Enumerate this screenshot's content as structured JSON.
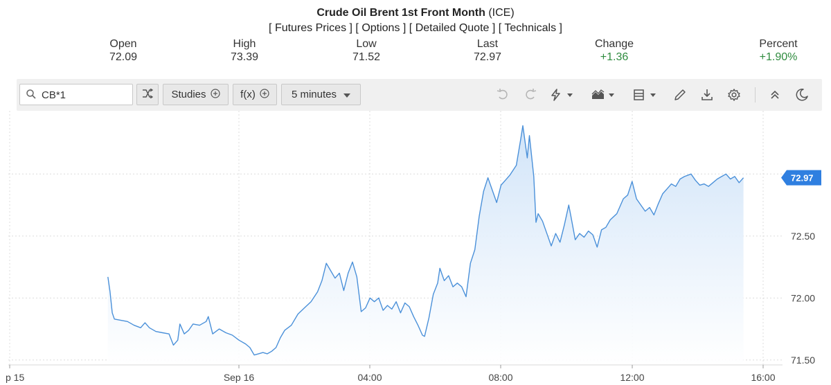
{
  "header": {
    "title_main": "Crude Oil Brent 1st Front Month",
    "title_exchange": "(ICE)",
    "links": [
      "Futures Prices",
      "Options",
      "Detailed Quote",
      "Technicals"
    ]
  },
  "stats": [
    {
      "label": "Open",
      "value": "72.09"
    },
    {
      "label": "High",
      "value": "73.39"
    },
    {
      "label": "Low",
      "value": "71.52"
    },
    {
      "label": "Last",
      "value": "72.97"
    },
    {
      "label": "Change",
      "value": "+1.36"
    },
    {
      "label": "Percent",
      "value": "+1.90%"
    }
  ],
  "toolbar": {
    "symbol": "CB*1",
    "studies_label": "Studies",
    "fx_label": "f(x)",
    "interval_label": "5 minutes",
    "icons": [
      "undo-icon",
      "redo-icon",
      "lightning-icon",
      "area-chart-icon",
      "layout-icon",
      "pencil-icon",
      "download-icon",
      "settings-icon",
      "collapse-icon",
      "dark-mode-icon"
    ]
  },
  "colors": {
    "line": "#4a90d9",
    "area_top": "#cfe3f8",
    "positive": "#2e8b3e",
    "last_tag": "#2f7fe0"
  },
  "chart_data": {
    "type": "area",
    "title": "Crude Oil Brent 1st Front Month (ICE)",
    "xlabel": "",
    "ylabel": "",
    "ylim": [
      71.46,
      73.51
    ],
    "y_ticks": [
      "72.50",
      "72.00",
      "71.50"
    ],
    "x_ticks": [
      "p 15",
      "Sep 16",
      "04:00",
      "08:00",
      "12:00",
      "16:00"
    ],
    "last_value_label": "72.97",
    "grid": true,
    "series": [
      {
        "points": [
          [
            "Sep 15 20:00",
            72.17
          ],
          [
            "Sep 15 20:04",
            72.05
          ],
          [
            "Sep 15 20:08",
            71.88
          ],
          [
            "Sep 15 20:12",
            71.83
          ],
          [
            "Sep 15 20:24",
            71.82
          ],
          [
            "Sep 15 20:36",
            71.81
          ],
          [
            "Sep 15 20:48",
            71.78
          ],
          [
            "Sep 15 21:00",
            71.76
          ],
          [
            "Sep 15 21:08",
            71.8
          ],
          [
            "Sep 15 21:16",
            71.76
          ],
          [
            "Sep 15 21:28",
            71.73
          ],
          [
            "Sep 15 21:40",
            71.72
          ],
          [
            "Sep 15 21:52",
            71.71
          ],
          [
            "Sep 15 22:00",
            71.62
          ],
          [
            "Sep 15 22:08",
            71.66
          ],
          [
            "Sep 15 22:12",
            71.79
          ],
          [
            "Sep 15 22:20",
            71.71
          ],
          [
            "Sep 15 22:28",
            71.74
          ],
          [
            "Sep 15 22:36",
            71.79
          ],
          [
            "Sep 15 22:48",
            71.78
          ],
          [
            "Sep 15 23:00",
            71.81
          ],
          [
            "Sep 15 23:04",
            71.85
          ],
          [
            "Sep 15 23:12",
            71.71
          ],
          [
            "Sep 15 23:24",
            71.75
          ],
          [
            "Sep 15 23:36",
            71.72
          ],
          [
            "Sep 15 23:48",
            71.7
          ],
          [
            "Sep 16 00:00",
            71.66
          ],
          [
            "Sep 16 00:12",
            71.63
          ],
          [
            "Sep 16 00:20",
            71.6
          ],
          [
            "Sep 16 00:28",
            71.54
          ],
          [
            "Sep 16 00:36",
            71.55
          ],
          [
            "Sep 16 00:44",
            71.56
          ],
          [
            "Sep 16 00:52",
            71.55
          ],
          [
            "Sep 16 01:00",
            71.57
          ],
          [
            "Sep 16 01:08",
            71.6
          ],
          [
            "Sep 16 01:16",
            71.68
          ],
          [
            "Sep 16 01:24",
            71.74
          ],
          [
            "Sep 16 01:36",
            71.78
          ],
          [
            "Sep 16 01:48",
            71.87
          ],
          [
            "Sep 16 02:00",
            71.92
          ],
          [
            "Sep 16 02:12",
            71.97
          ],
          [
            "Sep 16 02:24",
            72.05
          ],
          [
            "Sep 16 02:32",
            72.14
          ],
          [
            "Sep 16 02:40",
            72.28
          ],
          [
            "Sep 16 02:48",
            72.22
          ],
          [
            "Sep 16 02:56",
            72.16
          ],
          [
            "Sep 16 03:04",
            72.2
          ],
          [
            "Sep 16 03:12",
            72.06
          ],
          [
            "Sep 16 03:20",
            72.2
          ],
          [
            "Sep 16 03:28",
            72.29
          ],
          [
            "Sep 16 03:36",
            72.17
          ],
          [
            "Sep 16 03:44",
            71.89
          ],
          [
            "Sep 16 03:52",
            71.92
          ],
          [
            "Sep 16 04:00",
            72.0
          ],
          [
            "Sep 16 04:08",
            71.97
          ],
          [
            "Sep 16 04:16",
            72.0
          ],
          [
            "Sep 16 04:24",
            71.9
          ],
          [
            "Sep 16 04:32",
            71.94
          ],
          [
            "Sep 16 04:40",
            71.91
          ],
          [
            "Sep 16 04:48",
            71.97
          ],
          [
            "Sep 16 04:56",
            71.88
          ],
          [
            "Sep 16 05:04",
            71.96
          ],
          [
            "Sep 16 05:12",
            71.93
          ],
          [
            "Sep 16 05:20",
            71.85
          ],
          [
            "Sep 16 05:28",
            71.78
          ],
          [
            "Sep 16 05:36",
            71.7
          ],
          [
            "Sep 16 05:40",
            71.69
          ],
          [
            "Sep 16 05:48",
            71.84
          ],
          [
            "Sep 16 05:56",
            72.03
          ],
          [
            "Sep 16 06:04",
            72.12
          ],
          [
            "Sep 16 06:08",
            72.24
          ],
          [
            "Sep 16 06:16",
            72.14
          ],
          [
            "Sep 16 06:24",
            72.18
          ],
          [
            "Sep 16 06:32",
            72.09
          ],
          [
            "Sep 16 06:40",
            72.12
          ],
          [
            "Sep 16 06:48",
            72.09
          ],
          [
            "Sep 16 06:56",
            72.01
          ],
          [
            "Sep 16 07:04",
            72.28
          ],
          [
            "Sep 16 07:12",
            72.39
          ],
          [
            "Sep 16 07:20",
            72.66
          ],
          [
            "Sep 16 07:28",
            72.86
          ],
          [
            "Sep 16 07:36",
            72.97
          ],
          [
            "Sep 16 07:44",
            72.87
          ],
          [
            "Sep 16 07:52",
            72.77
          ],
          [
            "Sep 16 08:00",
            72.91
          ],
          [
            "Sep 16 08:08",
            72.95
          ],
          [
            "Sep 16 08:16",
            72.99
          ],
          [
            "Sep 16 08:28",
            73.07
          ],
          [
            "Sep 16 08:36",
            73.28
          ],
          [
            "Sep 16 08:40",
            73.39
          ],
          [
            "Sep 16 08:48",
            73.13
          ],
          [
            "Sep 16 08:52",
            73.31
          ],
          [
            "Sep 16 09:00",
            72.98
          ],
          [
            "Sep 16 09:04",
            72.61
          ],
          [
            "Sep 16 09:08",
            72.68
          ],
          [
            "Sep 16 09:16",
            72.62
          ],
          [
            "Sep 16 09:24",
            72.52
          ],
          [
            "Sep 16 09:32",
            72.42
          ],
          [
            "Sep 16 09:40",
            72.52
          ],
          [
            "Sep 16 09:48",
            72.45
          ],
          [
            "Sep 16 09:56",
            72.59
          ],
          [
            "Sep 16 10:04",
            72.75
          ],
          [
            "Sep 16 10:08",
            72.66
          ],
          [
            "Sep 16 10:16",
            72.47
          ],
          [
            "Sep 16 10:24",
            72.52
          ],
          [
            "Sep 16 10:32",
            72.49
          ],
          [
            "Sep 16 10:40",
            72.54
          ],
          [
            "Sep 16 10:48",
            72.51
          ],
          [
            "Sep 16 10:56",
            72.41
          ],
          [
            "Sep 16 11:04",
            72.55
          ],
          [
            "Sep 16 11:12",
            72.57
          ],
          [
            "Sep 16 11:20",
            72.63
          ],
          [
            "Sep 16 11:32",
            72.68
          ],
          [
            "Sep 16 11:44",
            72.8
          ],
          [
            "Sep 16 11:52",
            72.83
          ],
          [
            "Sep 16 12:00",
            72.94
          ],
          [
            "Sep 16 12:08",
            72.8
          ],
          [
            "Sep 16 12:16",
            72.75
          ],
          [
            "Sep 16 12:24",
            72.7
          ],
          [
            "Sep 16 12:32",
            72.73
          ],
          [
            "Sep 16 12:40",
            72.67
          ],
          [
            "Sep 16 12:48",
            72.76
          ],
          [
            "Sep 16 12:56",
            72.84
          ],
          [
            "Sep 16 13:04",
            72.88
          ],
          [
            "Sep 16 13:12",
            72.92
          ],
          [
            "Sep 16 13:20",
            72.9
          ],
          [
            "Sep 16 13:28",
            72.96
          ],
          [
            "Sep 16 13:36",
            72.98
          ],
          [
            "Sep 16 13:48",
            73.0
          ],
          [
            "Sep 16 13:56",
            72.95
          ],
          [
            "Sep 16 14:04",
            72.91
          ],
          [
            "Sep 16 14:12",
            72.92
          ],
          [
            "Sep 16 14:20",
            72.9
          ],
          [
            "Sep 16 14:28",
            72.93
          ],
          [
            "Sep 16 14:36",
            72.96
          ],
          [
            "Sep 16 14:44",
            72.98
          ],
          [
            "Sep 16 14:52",
            73.0
          ],
          [
            "Sep 16 15:00",
            72.96
          ],
          [
            "Sep 16 15:08",
            72.98
          ],
          [
            "Sep 16 15:16",
            72.93
          ],
          [
            "Sep 16 15:24",
            72.97
          ]
        ]
      }
    ]
  }
}
